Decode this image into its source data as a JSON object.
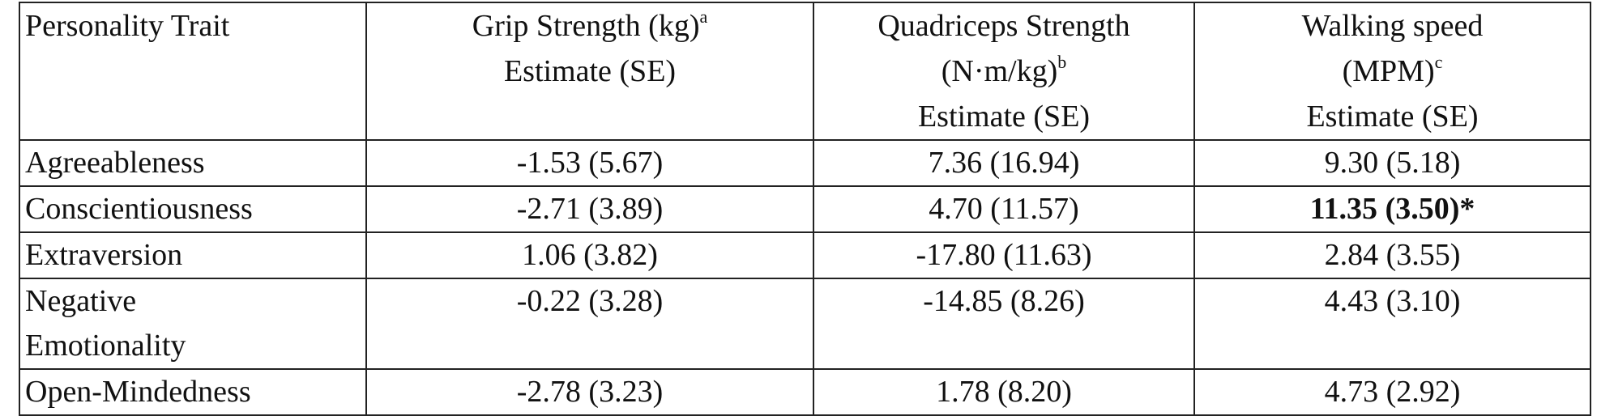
{
  "table": {
    "columns": [
      {
        "lines": [
          {
            "text": "Personality Trait"
          }
        ]
      },
      {
        "lines": [
          {
            "text": "Grip Strength (kg)",
            "sup": "a"
          },
          {
            "text": "Estimate (SE)"
          }
        ]
      },
      {
        "lines": [
          {
            "text": "Quadriceps Strength"
          },
          {
            "text": "(N·m/kg)",
            "sup": "b"
          },
          {
            "text": "Estimate (SE)"
          }
        ]
      },
      {
        "lines": [
          {
            "text": "Walking speed"
          },
          {
            "text": "(MPM)",
            "sup": "c"
          },
          {
            "text": "Estimate (SE)"
          }
        ]
      }
    ],
    "rows": [
      [
        "Agreeableness",
        "-1.53 (5.67)",
        "7.36 (16.94)",
        "9.30 (5.18)"
      ],
      [
        "Conscientiousness",
        "-2.71 (3.89)",
        "4.70 (11.57)",
        {
          "text": "11.35 (3.50)*",
          "bold": true
        }
      ],
      [
        "Extraversion",
        "1.06 (3.82)",
        "-17.80 (11.63)",
        "2.84 (3.55)"
      ],
      [
        "Negative Emotionality",
        "-0.22 (3.28)",
        "-14.85 (8.26)",
        "4.43 (3.10)"
      ],
      [
        "Open-Mindedness",
        "-2.78 (3.23)",
        "1.78 (8.20)",
        "4.73 (2.92)"
      ]
    ]
  }
}
